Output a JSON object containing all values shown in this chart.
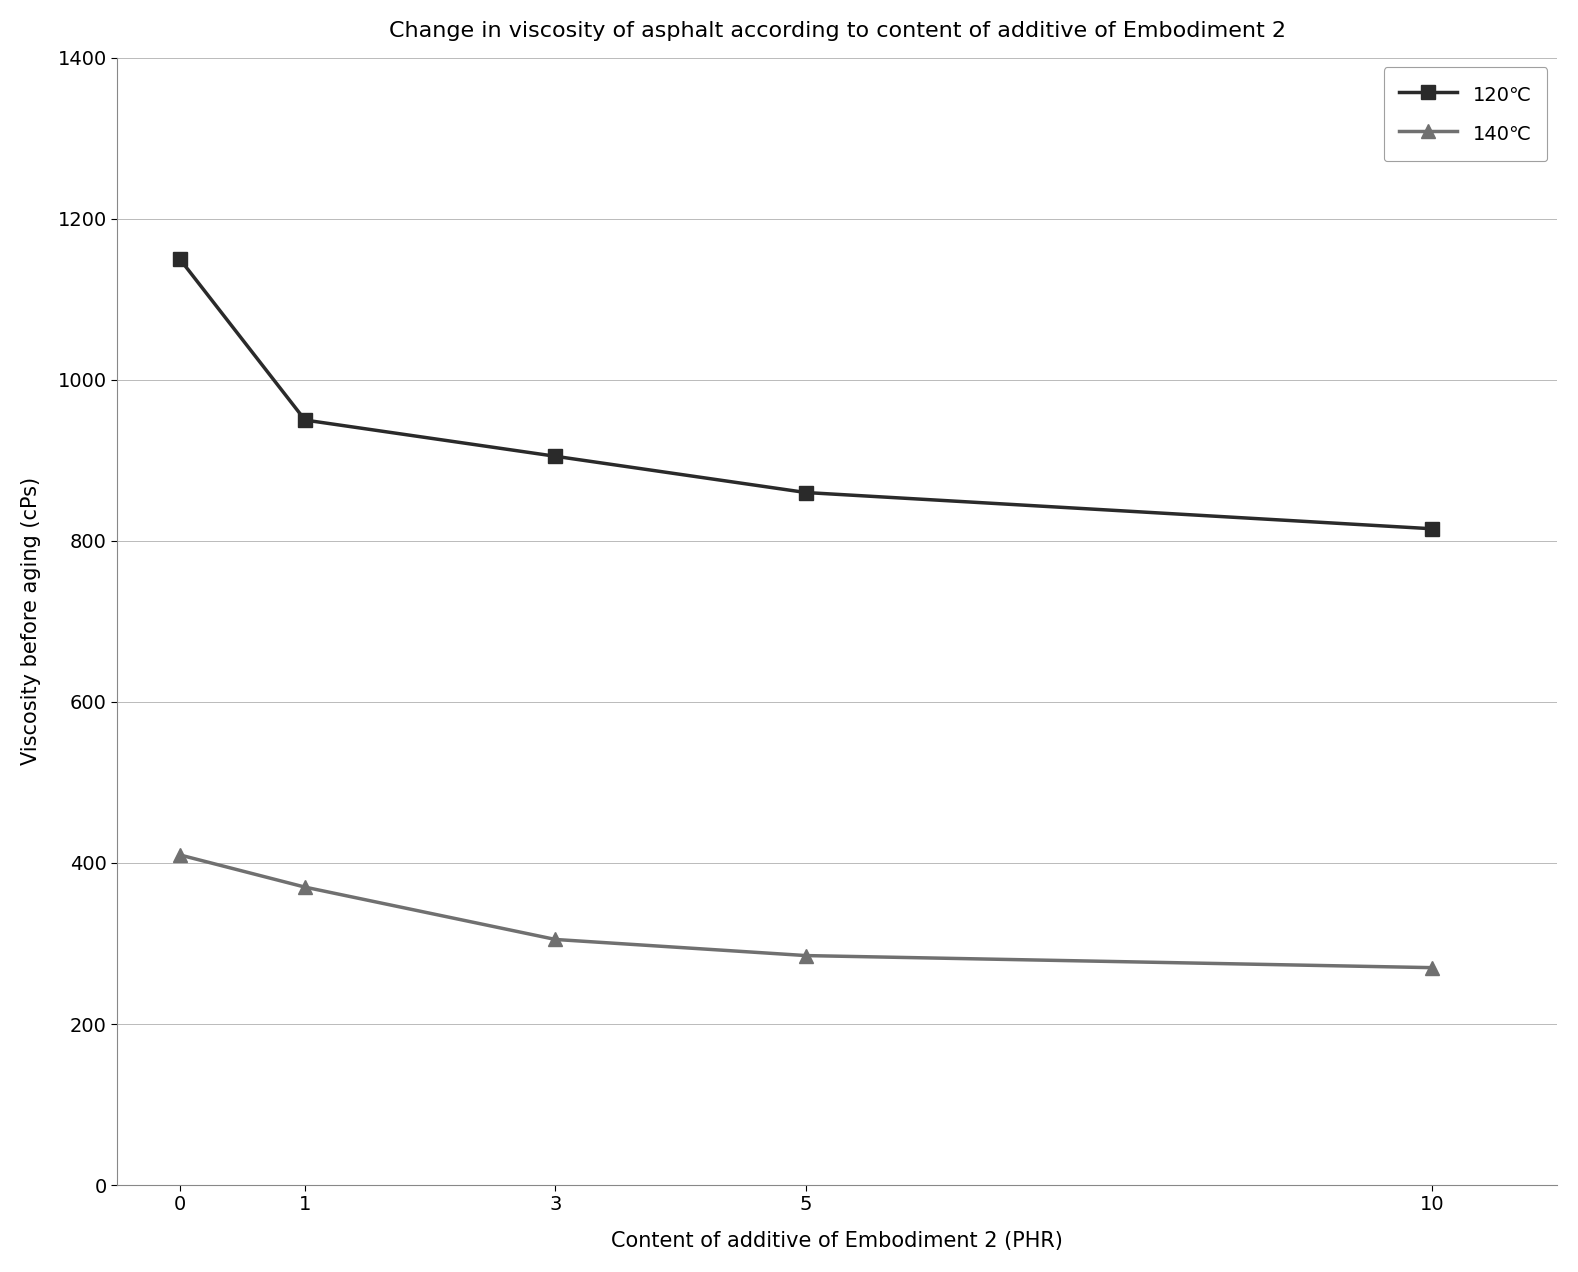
{
  "title": "Change in viscosity of asphalt according to content of additive of Embodiment 2",
  "xlabel": "Content of additive of Embodiment 2 (PHR)",
  "ylabel": "Viscosity before aging (cPs)",
  "x_values": [
    0,
    1,
    3,
    5,
    10
  ],
  "series": [
    {
      "label": "120℃",
      "y_values": [
        1150,
        950,
        905,
        860,
        815
      ],
      "color": "#2a2a2a",
      "marker": "s",
      "markersize": 10,
      "linewidth": 2.5
    },
    {
      "label": "140℃",
      "y_values": [
        410,
        370,
        305,
        285,
        270
      ],
      "color": "#707070",
      "marker": "^",
      "markersize": 10,
      "linewidth": 2.5
    }
  ],
  "ylim": [
    0,
    1400
  ],
  "yticks": [
    0,
    200,
    400,
    600,
    800,
    1000,
    1200,
    1400
  ],
  "xticks": [
    0,
    1,
    3,
    5,
    10
  ],
  "grid_color": "#b0b0b0",
  "grid_linestyle": "-",
  "grid_linewidth": 0.6,
  "background_color": "#ffffff",
  "title_fontsize": 16,
  "label_fontsize": 15,
  "tick_fontsize": 14,
  "legend_fontsize": 14,
  "legend_loc": "upper right",
  "fig_width": 15.78,
  "fig_height": 12.72,
  "dpi": 100
}
